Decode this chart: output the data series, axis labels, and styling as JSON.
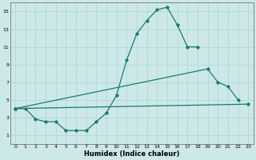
{
  "xlabel": "Humidex (Indice chaleur)",
  "xlim": [
    -0.5,
    23.5
  ],
  "ylim": [
    0,
    16
  ],
  "xticks": [
    0,
    1,
    2,
    3,
    4,
    5,
    6,
    7,
    8,
    9,
    10,
    11,
    12,
    13,
    14,
    15,
    16,
    17,
    18,
    19,
    20,
    21,
    22,
    23
  ],
  "yticks": [
    1,
    3,
    5,
    7,
    9,
    11,
    13,
    15
  ],
  "bg_color": "#cde8e8",
  "grid_color": "#b0d8d8",
  "line_color": "#1a7a70",
  "line1_x": [
    0,
    1,
    2,
    3,
    4,
    5,
    6,
    7,
    8,
    9,
    10,
    11,
    12,
    13,
    14,
    15,
    16,
    17,
    18
  ],
  "line1_y": [
    4.0,
    4.0,
    2.8,
    2.5,
    2.5,
    1.5,
    1.5,
    1.5,
    2.5,
    3.5,
    5.5,
    9.5,
    12.5,
    14.0,
    15.2,
    15.5,
    13.5,
    11.0,
    11.0
  ],
  "line2_x": [
    0,
    19,
    20,
    21,
    22
  ],
  "line2_y": [
    4.0,
    8.5,
    7.0,
    6.5,
    5.0
  ],
  "line3_x": [
    0,
    23
  ],
  "line3_y": [
    4.0,
    4.5
  ]
}
